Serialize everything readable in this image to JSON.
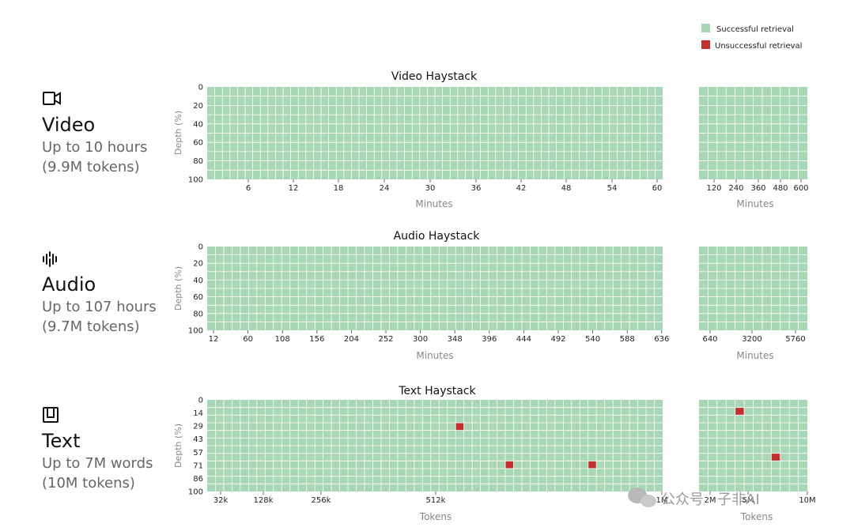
{
  "legend": [
    {
      "label": "Successful retrieval",
      "color": "#a7d7b4"
    },
    {
      "label": "Unsuccessful retrieval",
      "color": "#c62e2e"
    }
  ],
  "colors": {
    "success": "#a7d7b4",
    "failure": "#c62e2e",
    "gridline": "#ffffff"
  },
  "watermark": {
    "text": "公众号 · 子非AI",
    "icon": "wechat-icon"
  },
  "chart_data": [
    {
      "type": "heatmap",
      "title": "Video Haystack",
      "modality": {
        "icon": "video-camera-icon",
        "name": "Video",
        "sub1": "Up to 10 hours",
        "sub2": "(9.9M tokens)"
      },
      "ylabel": "Depth (%)",
      "xlabel": "Minutes",
      "y_ticks": [
        "0",
        "20",
        "40",
        "60",
        "80",
        "100"
      ],
      "panels": [
        {
          "x_ticks": [
            "6",
            "12",
            "18",
            "24",
            "30",
            "36",
            "42",
            "48",
            "54",
            "60"
          ],
          "xlim": [
            0,
            60
          ],
          "cols": 60,
          "rows": 10,
          "failures": []
        },
        {
          "x_ticks": [
            "120",
            "240",
            "360",
            "480",
            "600"
          ],
          "xlim": [
            60,
            600
          ],
          "cols": 12,
          "rows": 10,
          "failures": []
        }
      ]
    },
    {
      "type": "heatmap",
      "title": "Audio Haystack",
      "modality": {
        "icon": "audio-waveform-icon",
        "name": "Audio",
        "sub1": "Up to 107 hours",
        "sub2": "(9.7M tokens)"
      },
      "ylabel": "Depth (%)",
      "xlabel": "Minutes",
      "y_ticks": [
        "0",
        "20",
        "40",
        "60",
        "80",
        "100"
      ],
      "panels": [
        {
          "x_ticks": [
            "12",
            "60",
            "108",
            "156",
            "204",
            "252",
            "300",
            "348",
            "396",
            "444",
            "492",
            "540",
            "588",
            "636"
          ],
          "xlim": [
            0,
            660
          ],
          "cols": 55,
          "rows": 10,
          "failures": []
        },
        {
          "x_ticks": [
            "640",
            "3200",
            "5760"
          ],
          "xlim": [
            0,
            6400
          ],
          "cols": 12,
          "rows": 10,
          "failures": []
        }
      ]
    },
    {
      "type": "heatmap",
      "title": "Text Haystack",
      "modality": {
        "icon": "book-icon",
        "name": "Text",
        "sub1": "Up to 7M words",
        "sub2": "(10M tokens)"
      },
      "ylabel": "Depth (%)",
      "xlabel": "Tokens",
      "y_ticks": [
        "0",
        "14",
        "29",
        "43",
        "57",
        "71",
        "86",
        "100"
      ],
      "panels": [
        {
          "x_ticks": [
            "32k",
            "128k",
            "256k",
            "512k",
            "1M"
          ],
          "xlim": [
            0,
            1000000
          ],
          "cols": 55,
          "rows": 12,
          "failures": [
            [
              30,
              3
            ],
            [
              36,
              8
            ],
            [
              46,
              8
            ]
          ]
        },
        {
          "x_ticks": [
            "2M",
            "5M",
            "10M"
          ],
          "xlim": [
            1000000,
            10000000
          ],
          "cols": 12,
          "rows": 12,
          "failures": [
            [
              4,
              1
            ],
            [
              8,
              7
            ]
          ]
        }
      ]
    }
  ]
}
